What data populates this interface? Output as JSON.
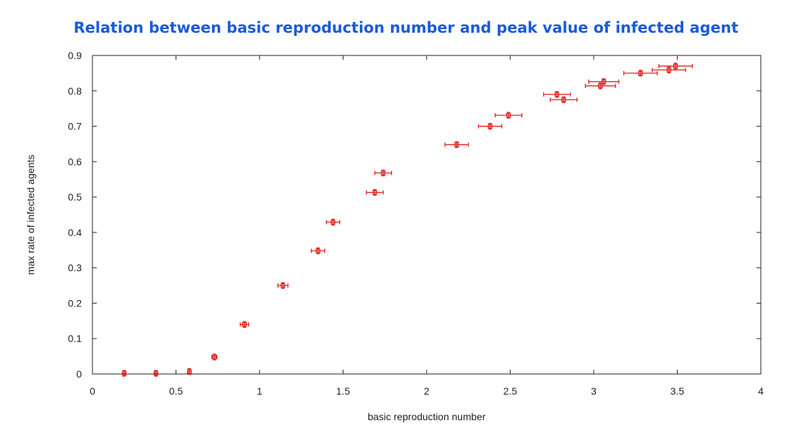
{
  "chart_data": {
    "type": "scatter",
    "title": "Relation between basic reproduction number and peak value of infected agent",
    "xlabel": "basic reproduction number",
    "ylabel": "max rate of infected agents",
    "xlim": [
      0,
      4
    ],
    "ylim": [
      0,
      0.9
    ],
    "xticks": [
      "0",
      "0.5",
      "1",
      "1.5",
      "2",
      "2.5",
      "3",
      "3.5",
      "4"
    ],
    "yticks": [
      "0",
      "0.1",
      "0.2",
      "0.3",
      "0.4",
      "0.5",
      "0.6",
      "0.7",
      "0.8",
      "0.9"
    ],
    "grid": false,
    "marker_color": "#e0201b",
    "points": [
      {
        "x": 0.19,
        "y": 0.002,
        "xerr": 0.01
      },
      {
        "x": 0.38,
        "y": 0.002,
        "xerr": 0.01
      },
      {
        "x": 0.58,
        "y": 0.007,
        "xerr": 0.01
      },
      {
        "x": 0.73,
        "y": 0.048,
        "xerr": 0.015
      },
      {
        "x": 0.91,
        "y": 0.14,
        "xerr": 0.025
      },
      {
        "x": 1.14,
        "y": 0.25,
        "xerr": 0.03
      },
      {
        "x": 1.35,
        "y": 0.348,
        "xerr": 0.04
      },
      {
        "x": 1.44,
        "y": 0.429,
        "xerr": 0.04
      },
      {
        "x": 1.69,
        "y": 0.513,
        "xerr": 0.05
      },
      {
        "x": 1.74,
        "y": 0.568,
        "xerr": 0.05
      },
      {
        "x": 2.18,
        "y": 0.648,
        "xerr": 0.07
      },
      {
        "x": 2.38,
        "y": 0.7,
        "xerr": 0.07
      },
      {
        "x": 2.49,
        "y": 0.731,
        "xerr": 0.08
      },
      {
        "x": 2.78,
        "y": 0.79,
        "xerr": 0.08
      },
      {
        "x": 2.82,
        "y": 0.775,
        "xerr": 0.08
      },
      {
        "x": 3.04,
        "y": 0.814,
        "xerr": 0.09
      },
      {
        "x": 3.06,
        "y": 0.826,
        "xerr": 0.09
      },
      {
        "x": 3.28,
        "y": 0.85,
        "xerr": 0.1
      },
      {
        "x": 3.45,
        "y": 0.859,
        "xerr": 0.1
      },
      {
        "x": 3.49,
        "y": 0.87,
        "xerr": 0.1
      }
    ]
  }
}
